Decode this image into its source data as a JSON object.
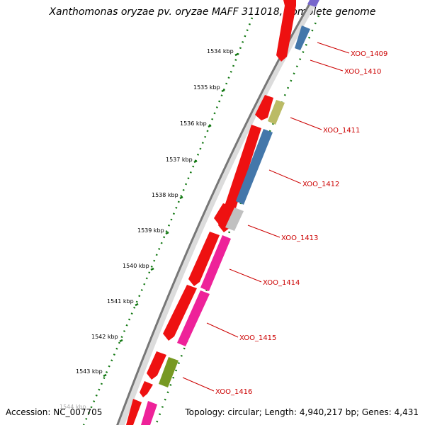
{
  "header": {
    "title": "Xanthomonas oryzae pv. oryzae MAFF 311018, complete genome"
  },
  "footer": {
    "accession": "Accession: NC_007705",
    "topology": "Topology: circular; Length: 4,940,217 bp; Genes: 4,431"
  },
  "colors": {
    "backbone": "#777777",
    "tick": "#117711",
    "gene_label": "#cc0000",
    "cds_red": "#ee1111",
    "blue": "#4477aa",
    "khaki": "#bbbb66",
    "gray": "#c0c0c0",
    "pink": "#ee2299",
    "olive": "#779922",
    "purple": "#7766cc"
  },
  "scale_labels": [
    "1534 kbp",
    "1535 kbp",
    "1536 kbp",
    "1537 kbp",
    "1538 kbp",
    "1539 kbp",
    "1540 kbp",
    "1541 kbp",
    "1542 kbp",
    "1543 kbp",
    "1544 kbp"
  ],
  "gene_labels": [
    "XOO_1409",
    "XOO_1410",
    "XOO_1411",
    "XOO_1412",
    "XOO_1413",
    "XOO_1414",
    "XOO_1415",
    "XOO_1416"
  ]
}
